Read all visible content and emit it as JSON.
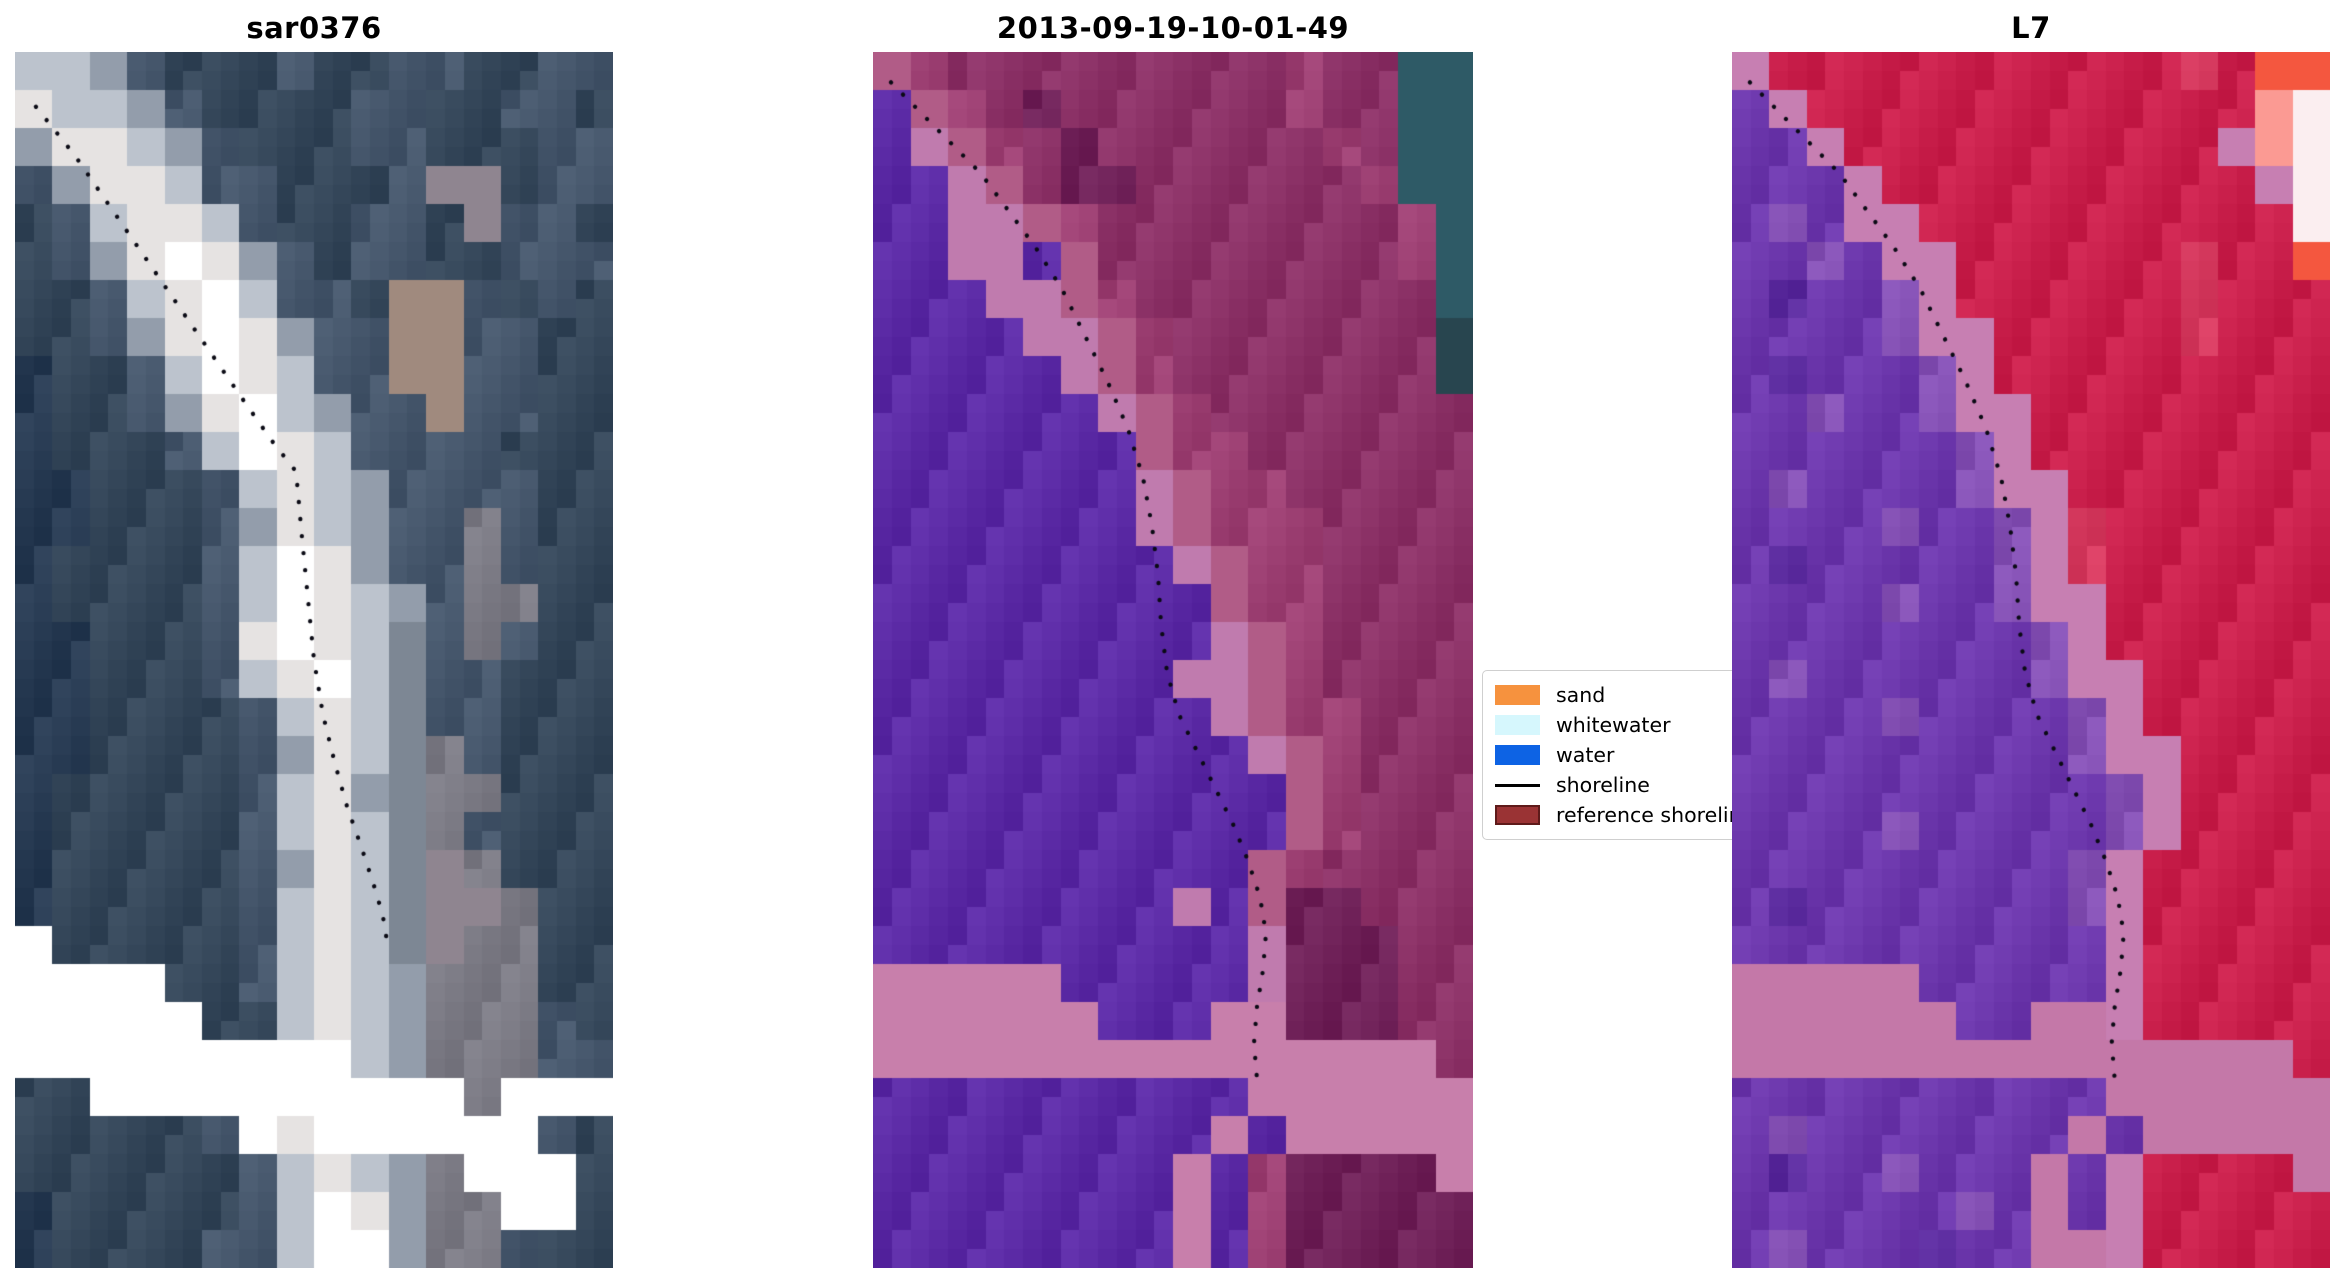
{
  "legend": {
    "items": [
      {
        "label": "sand",
        "swatch": "patch",
        "color": "#f6923e"
      },
      {
        "label": "whitewater",
        "swatch": "patch",
        "color": "#d6f7fd"
      },
      {
        "label": "water",
        "swatch": "patch",
        "color": "#0d63e4"
      },
      {
        "label": "shoreline",
        "swatch": "line",
        "color": "#000000"
      },
      {
        "label": "reference shoreline",
        "swatch": "patch",
        "color": "#9a3334",
        "edge": "#5e1a1a"
      }
    ]
  },
  "chart_data": {
    "type": "heatmap",
    "description": "Three co-registered pixelated coastal image chips with a dotted black detected-shoreline overlaid; legend box sits between panels 2 and 3, partially hidden behind panel 3.",
    "legend_position": "center-right, overlapped by third panel",
    "panels": [
      {
        "title": "sar0376",
        "shoreline": {
          "color": "#0a0a14",
          "points": [
            [
              0.035,
              0.045
            ],
            [
              0.1,
              0.085
            ],
            [
              0.17,
              0.135
            ],
            [
              0.24,
              0.185
            ],
            [
              0.31,
              0.235
            ],
            [
              0.38,
              0.285
            ],
            [
              0.43,
              0.32
            ],
            [
              0.47,
              0.345
            ],
            [
              0.48,
              0.4
            ],
            [
              0.49,
              0.45
            ],
            [
              0.5,
              0.5
            ],
            [
              0.515,
              0.545
            ],
            [
              0.535,
              0.585
            ],
            [
              0.555,
              0.62
            ],
            [
              0.58,
              0.655
            ],
            [
              0.6,
              0.685
            ],
            [
              0.615,
              0.71
            ],
            [
              0.625,
              0.74
            ]
          ]
        },
        "jitter": "abcj",
        "palette": {
          "a": "#273a52",
          "b": "#344659",
          "c": "#45566b",
          "d": "#7d8794",
          "e": "#939dab",
          "f": "#bcc3cd",
          "g": "#e6e3e2",
          "h": "#ffffff",
          "i": "#a08a7e",
          "j": "#7b7a84",
          "k": "#8f8590"
        },
        "grid": [
          "ffecbbbcbbccbbcc",
          "gffecbbbbccbbccb",
          "eggfecbbbccbbbcc",
          "ceggfccbbbckkbcc",
          "bcfggfcbbccbkccb",
          "bceghgecbccbbccc",
          "bbcfghfccbiicbcb",
          "bbceghgecciiccbb",
          "abbcfhgfcciiccbb",
          "abbceghfecciccbb",
          "abbbcfhgfccccbbb",
          "aabbbcfgfeccccbb",
          "aabbbcegfeccjcbb",
          "abbbbcfhgeccjcbb",
          "abbbbcfhgfecjjbb",
          "aabbbcghgfdcjcbb",
          "aabbbcfghfdccbbb",
          "aabbbbcfgfdccbbb",
          "aabbbbcegfdjcbbb",
          "abbbbbcfgedjjbbb",
          "abbbbbcfgfdjcbbb",
          "abbbbbcegfdkjbbb",
          "abbbbbcfgfdkkjbb",
          "hbbbbbcfgfdkjjbb",
          "hhhhbbcfgfejjjbb",
          "hhhhhbbfgfejjjcb",
          "hhhhhhhhhfejjjcc",
          "bbhhhhhhhhhhjhhh",
          "bbbbbchghhhhhhcb",
          "bbbbbbcfgfejhhhb",
          "abbbbbcfhgejjhhb",
          "abbbbccfhhejjcbb"
        ]
      },
      {
        "title": "2013-09-19-10-01-49",
        "shoreline": {
          "color": "#0a0a14",
          "points": [
            [
              0.03,
              0.025
            ],
            [
              0.08,
              0.05
            ],
            [
              0.13,
              0.075
            ],
            [
              0.18,
              0.1
            ],
            [
              0.225,
              0.13
            ],
            [
              0.27,
              0.16
            ],
            [
              0.315,
              0.195
            ],
            [
              0.35,
              0.23
            ],
            [
              0.39,
              0.27
            ],
            [
              0.425,
              0.31
            ],
            [
              0.45,
              0.35
            ],
            [
              0.465,
              0.39
            ],
            [
              0.475,
              0.43
            ],
            [
              0.48,
              0.47
            ],
            [
              0.49,
              0.51
            ],
            [
              0.51,
              0.545
            ],
            [
              0.54,
              0.575
            ],
            [
              0.57,
              0.605
            ],
            [
              0.6,
              0.635
            ],
            [
              0.625,
              0.665
            ],
            [
              0.645,
              0.695
            ],
            [
              0.655,
              0.725
            ],
            [
              0.65,
              0.755
            ],
            [
              0.64,
              0.785
            ],
            [
              0.635,
              0.815
            ],
            [
              0.64,
              0.845
            ]
          ]
        },
        "jitter": "mnpM",
        "palette": {
          "p": "#5b2aa5",
          "q": "#c07bae",
          "Q": "#c87fab",
          "r": "#b15c87",
          "n": "#9c3f72",
          "m": "#8b3166",
          "M": "#6f2158",
          "t": "#2e5a66",
          "T": "#28454f"
        },
        "grid": [
          "rnmmmmmmmmmnmmtt",
          "prnmMmmmmmmnmmtt",
          "pqrnmMmmmmmmnmtt",
          "ppqrmMMmmmmmmntt",
          "ppqqrnmmmmmmmmnt",
          "ppqqprmmmmmmmmnt",
          "pppqqrnmmmmmmmmt",
          "ppppqqrnmmmmmmmT",
          "pppppqrnmmmmmmmT",
          "ppppppqrnmmmmmmm",
          "ppppppprnnmmmmmm",
          "pppppppqrnnmmmmm",
          "pppppppqrnnnmmmm",
          "ppppppppqrnnmmmm",
          "ppppppppprnnmmmm",
          "pppppppppqrnmmmm",
          "ppppppppqqrnmmmm",
          "pppppppppqrnnmmm",
          "ppppppppppqrnmmm",
          "ppppppppppprnmmm",
          "ppppppppppprnmmm",
          "pppppppppprnmmmm",
          "ppppppppqprMMmmm",
          "ppppppppppqMMMmm",
          "QQQQQpppppqMMMmm",
          "QQQQQQpppQQMMMmm",
          "QQQQQQQQQQQQQQQm",
          "ppppppppppQQQQQQ",
          "pppppppppQpQQQQQ",
          "ppppppppQpnMMMMQ",
          "ppppppppQpnMMMMM",
          "ppppppppQpnMMMMM"
        ]
      },
      {
        "title": "L7",
        "shoreline": {
          "color": "#0a0a14",
          "points": [
            [
              0.03,
              0.025
            ],
            [
              0.08,
              0.05
            ],
            [
              0.13,
              0.075
            ],
            [
              0.18,
              0.1
            ],
            [
              0.225,
              0.13
            ],
            [
              0.27,
              0.16
            ],
            [
              0.315,
              0.195
            ],
            [
              0.35,
              0.23
            ],
            [
              0.39,
              0.27
            ],
            [
              0.425,
              0.31
            ],
            [
              0.45,
              0.35
            ],
            [
              0.465,
              0.39
            ],
            [
              0.475,
              0.43
            ],
            [
              0.48,
              0.47
            ],
            [
              0.49,
              0.51
            ],
            [
              0.51,
              0.545
            ],
            [
              0.54,
              0.575
            ],
            [
              0.57,
              0.605
            ],
            [
              0.6,
              0.635
            ],
            [
              0.625,
              0.665
            ],
            [
              0.645,
              0.695
            ],
            [
              0.655,
              0.725
            ],
            [
              0.65,
              0.755
            ],
            [
              0.64,
              0.785
            ],
            [
              0.635,
              0.815
            ],
            [
              0.64,
              0.845
            ]
          ]
        },
        "jitter": "uCvUL",
        "palette": {
          "u": "#6c37ac",
          "U": "#5a2a9d",
          "v": "#8450b4",
          "O": "#c77fb2",
          "C": "#c91f4b",
          "L": "#d63a5f",
          "Q": "#c478a8",
          "s": "#f4573f",
          "S": "#fb9a93",
          "w": "#fbeef0"
        },
        "grid": [
          "OCCCCCCCCCCCLCss",
          "uOCCCCCCCCCCCCSw",
          "uuOCCCCCCCCCCOSw",
          "uuuOCCCCCCCCCCOw",
          "uvuOOCCCCCCCCCCw",
          "uuvuOOCCCCCCLCCs",
          "uUuuvOCCCCCCLCCC",
          "uuuuvOOCCCCCLCCC",
          "uUuuuvOCCCCCCCCC",
          "uuvuuvOOCCCCCCCC",
          "uuuuuuvOCCCCCCCC",
          "uvuuuuvOOCCCCCCC",
          "uuuuvuuvOLCCCCCC",
          "uUuuuuuvOLCCCCCC",
          "uuuuvuuvOOCCCCCC",
          "uuuuuuuuvOCCCCCC",
          "uvuuuuuuvOOCCCCC",
          "uuuuvuuuuvOCCCCC",
          "uuuuuuuuuvOOCCCC",
          "uuuuuuuuuuvOCCCC",
          "uuuuvuuuuuvOCCCC",
          "uuuuuuuuuvOCCCCC",
          "uUuuuuuuuvOCCCCC",
          "uuuuuuuuuuOCCCCC",
          "QQQQQuuuuuOCCCCC",
          "QQQQQQuuQQOCCCCC",
          "QQQQQQQQQQQQQQQC",
          "uuuuuuuuuuQQQQQQ",
          "uvuuuuuuuQuQQQQQ",
          "uUuuvuuuQuOCCCCQ",
          "uuuuuuvuQuOCCCCC",
          "uvuuuUuuQQOCCCCC"
        ]
      }
    ]
  }
}
